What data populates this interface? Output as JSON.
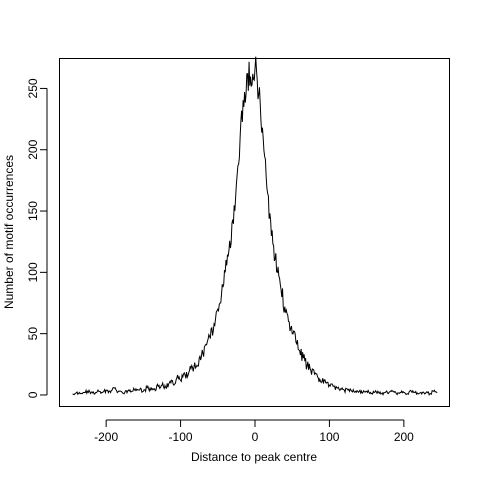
{
  "chart_data": {
    "type": "line",
    "title": "",
    "xlabel": "Distance to peak centre",
    "ylabel": "Number of motif occurrences",
    "xlim": [
      -262,
      262
    ],
    "ylim": [
      -9,
      274
    ],
    "xticks": [
      -200,
      -100,
      0,
      100,
      200
    ],
    "yticks": [
      0,
      50,
      100,
      150,
      200,
      250
    ],
    "grid": false,
    "legend": "none",
    "line_color": "#000000",
    "series": [
      {
        "x": [
          -245,
          -240,
          -235,
          -230,
          -225,
          -220,
          -215,
          -210,
          -205,
          -200,
          -195,
          -190,
          -185,
          -180,
          -175,
          -170,
          -165,
          -160,
          -155,
          -150,
          -145,
          -140,
          -135,
          -130,
          -125,
          -120,
          -115,
          -110,
          -105,
          -100,
          -95,
          -90,
          -85,
          -80,
          -75,
          -70,
          -65,
          -60,
          -55,
          -50,
          -45,
          -40,
          -35,
          -30,
          -25,
          -20,
          -15,
          -10,
          -5,
          0,
          5,
          10,
          15,
          20,
          25,
          30,
          35,
          40,
          45,
          50,
          55,
          60,
          65,
          70,
          75,
          80,
          85,
          90,
          95,
          100,
          105,
          110,
          115,
          120,
          125,
          130,
          135,
          140,
          145,
          150,
          155,
          160,
          165,
          170,
          175,
          180,
          185,
          190,
          195,
          200,
          205,
          210,
          215,
          220,
          225,
          230,
          235,
          240,
          245
        ],
        "y": [
          1,
          2,
          1,
          2,
          3,
          2,
          1,
          3,
          2,
          4,
          3,
          6,
          2,
          3,
          2,
          4,
          3,
          5,
          4,
          3,
          6,
          4,
          5,
          7,
          8,
          6,
          10,
          9,
          14,
          12,
          18,
          16,
          24,
          22,
          30,
          34,
          41,
          46,
          58,
          70,
          82,
          100,
          118,
          143,
          172,
          210,
          235,
          262,
          252,
          266,
          245,
          218,
          178,
          148,
          122,
          100,
          86,
          72,
          60,
          50,
          43,
          36,
          30,
          24,
          20,
          17,
          14,
          11,
          10,
          8,
          7,
          6,
          5,
          4,
          4,
          3,
          3,
          3,
          2,
          3,
          2,
          2,
          3,
          1,
          2,
          2,
          3,
          1,
          2,
          2,
          1,
          3,
          2,
          1,
          2,
          2,
          1,
          3,
          2
        ]
      }
    ]
  }
}
